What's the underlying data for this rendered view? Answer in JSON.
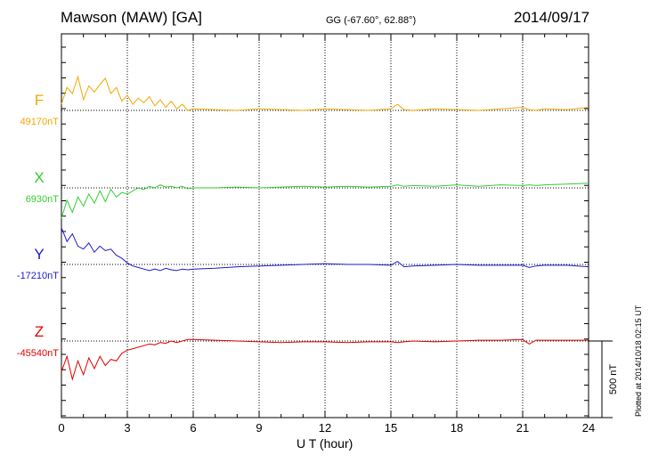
{
  "header": {
    "station": "Mawson (MAW)  [GA]",
    "coords": "GG (-67.60°,  62.88°)",
    "date": "2014/09/17"
  },
  "footer": {
    "plotted": "Plotted at 2014/10/18 02:15 UT"
  },
  "chart_data": {
    "type": "line",
    "xlabel": "U T (hour)",
    "xlim": [
      0,
      24
    ],
    "xticks": [
      "0",
      "3",
      "6",
      "9",
      "12",
      "15",
      "18",
      "21",
      "24"
    ],
    "scale_bar": {
      "label": "500 nT",
      "value_nT": 500
    },
    "series": [
      {
        "name": "F",
        "baseline": "49170nT",
        "color": "#f0a800",
        "x": [
          0,
          0.25,
          0.5,
          0.75,
          1,
          1.25,
          1.5,
          1.75,
          2,
          2.25,
          2.5,
          2.75,
          3,
          3.25,
          3.5,
          3.75,
          4,
          4.25,
          4.5,
          4.75,
          5,
          5.25,
          5.5,
          5.75,
          6,
          7,
          8,
          9,
          10,
          11,
          12,
          13,
          14,
          15,
          15.3,
          15.6,
          16,
          17,
          18,
          19,
          20,
          21,
          21.3,
          21.6,
          22,
          23,
          24
        ],
        "y": [
          40,
          150,
          110,
          220,
          70,
          160,
          120,
          170,
          210,
          110,
          150,
          60,
          100,
          40,
          80,
          50,
          90,
          30,
          70,
          20,
          60,
          10,
          40,
          0,
          10,
          5,
          0,
          10,
          5,
          0,
          10,
          5,
          0,
          10,
          40,
          5,
          0,
          10,
          5,
          0,
          10,
          20,
          5,
          0,
          10,
          5,
          20
        ]
      },
      {
        "name": "X",
        "baseline": "6930nT",
        "color": "#33cc33",
        "x": [
          0,
          0.25,
          0.5,
          0.75,
          1,
          1.25,
          1.5,
          1.75,
          2,
          2.25,
          2.5,
          2.75,
          3,
          3.25,
          3.5,
          3.75,
          4,
          4.25,
          4.5,
          4.75,
          5,
          5.25,
          5.5,
          5.75,
          6,
          7,
          8,
          9,
          10,
          11,
          12,
          13,
          14,
          15,
          15.3,
          15.6,
          16,
          17,
          18,
          19,
          20,
          21,
          21.3,
          21.6,
          22,
          23,
          24
        ],
        "y": [
          -200,
          -80,
          -160,
          -60,
          -120,
          -40,
          -100,
          -20,
          -90,
          -10,
          -60,
          -30,
          -40,
          -20,
          0,
          -10,
          10,
          0,
          20,
          5,
          10,
          0,
          10,
          -5,
          0,
          0,
          5,
          0,
          5,
          10,
          5,
          10,
          5,
          10,
          20,
          10,
          15,
          10,
          20,
          10,
          20,
          15,
          20,
          15,
          20,
          25,
          30
        ]
      },
      {
        "name": "Y",
        "baseline": "-17210nT",
        "color": "#1a1acc",
        "x": [
          0,
          0.25,
          0.5,
          0.75,
          1,
          1.25,
          1.5,
          1.75,
          2,
          2.25,
          2.5,
          2.75,
          3,
          3.25,
          3.5,
          3.75,
          4,
          4.25,
          4.5,
          4.75,
          5,
          5.25,
          5.5,
          5.75,
          6,
          7,
          8,
          9,
          10,
          11,
          12,
          13,
          14,
          15,
          15.3,
          15.6,
          16,
          17,
          18,
          19,
          20,
          21,
          21.3,
          21.6,
          22,
          23,
          24
        ],
        "y": [
          240,
          150,
          200,
          120,
          100,
          140,
          80,
          120,
          90,
          100,
          60,
          40,
          10,
          -10,
          -20,
          -30,
          -40,
          -30,
          -40,
          -25,
          -35,
          -40,
          -30,
          -35,
          -30,
          -25,
          -15,
          -10,
          -5,
          0,
          5,
          0,
          0,
          -5,
          20,
          -15,
          -10,
          -5,
          0,
          -5,
          -5,
          -5,
          -20,
          -10,
          -5,
          -5,
          -15
        ]
      },
      {
        "name": "Z",
        "baseline": "-45540nT",
        "color": "#e00000",
        "x": [
          0,
          0.25,
          0.5,
          0.75,
          1,
          1.25,
          1.5,
          1.75,
          2,
          2.25,
          2.5,
          2.75,
          3,
          3.25,
          3.5,
          3.75,
          4,
          4.25,
          4.5,
          4.75,
          5,
          5.25,
          5.5,
          5.75,
          6,
          7,
          8,
          9,
          10,
          11,
          12,
          13,
          14,
          15,
          15.3,
          15.6,
          16,
          17,
          18,
          19,
          20,
          21,
          21.3,
          21.6,
          22,
          23,
          24
        ],
        "y": [
          -200,
          -100,
          -250,
          -130,
          -220,
          -110,
          -180,
          -100,
          -160,
          -120,
          -130,
          -80,
          -60,
          -50,
          -40,
          -30,
          -20,
          -25,
          -10,
          -15,
          0,
          -10,
          0,
          10,
          10,
          5,
          0,
          -5,
          -10,
          -5,
          -5,
          -10,
          -5,
          -5,
          -10,
          -5,
          0,
          -5,
          0,
          5,
          5,
          10,
          -20,
          5,
          5,
          5,
          5
        ]
      }
    ]
  }
}
